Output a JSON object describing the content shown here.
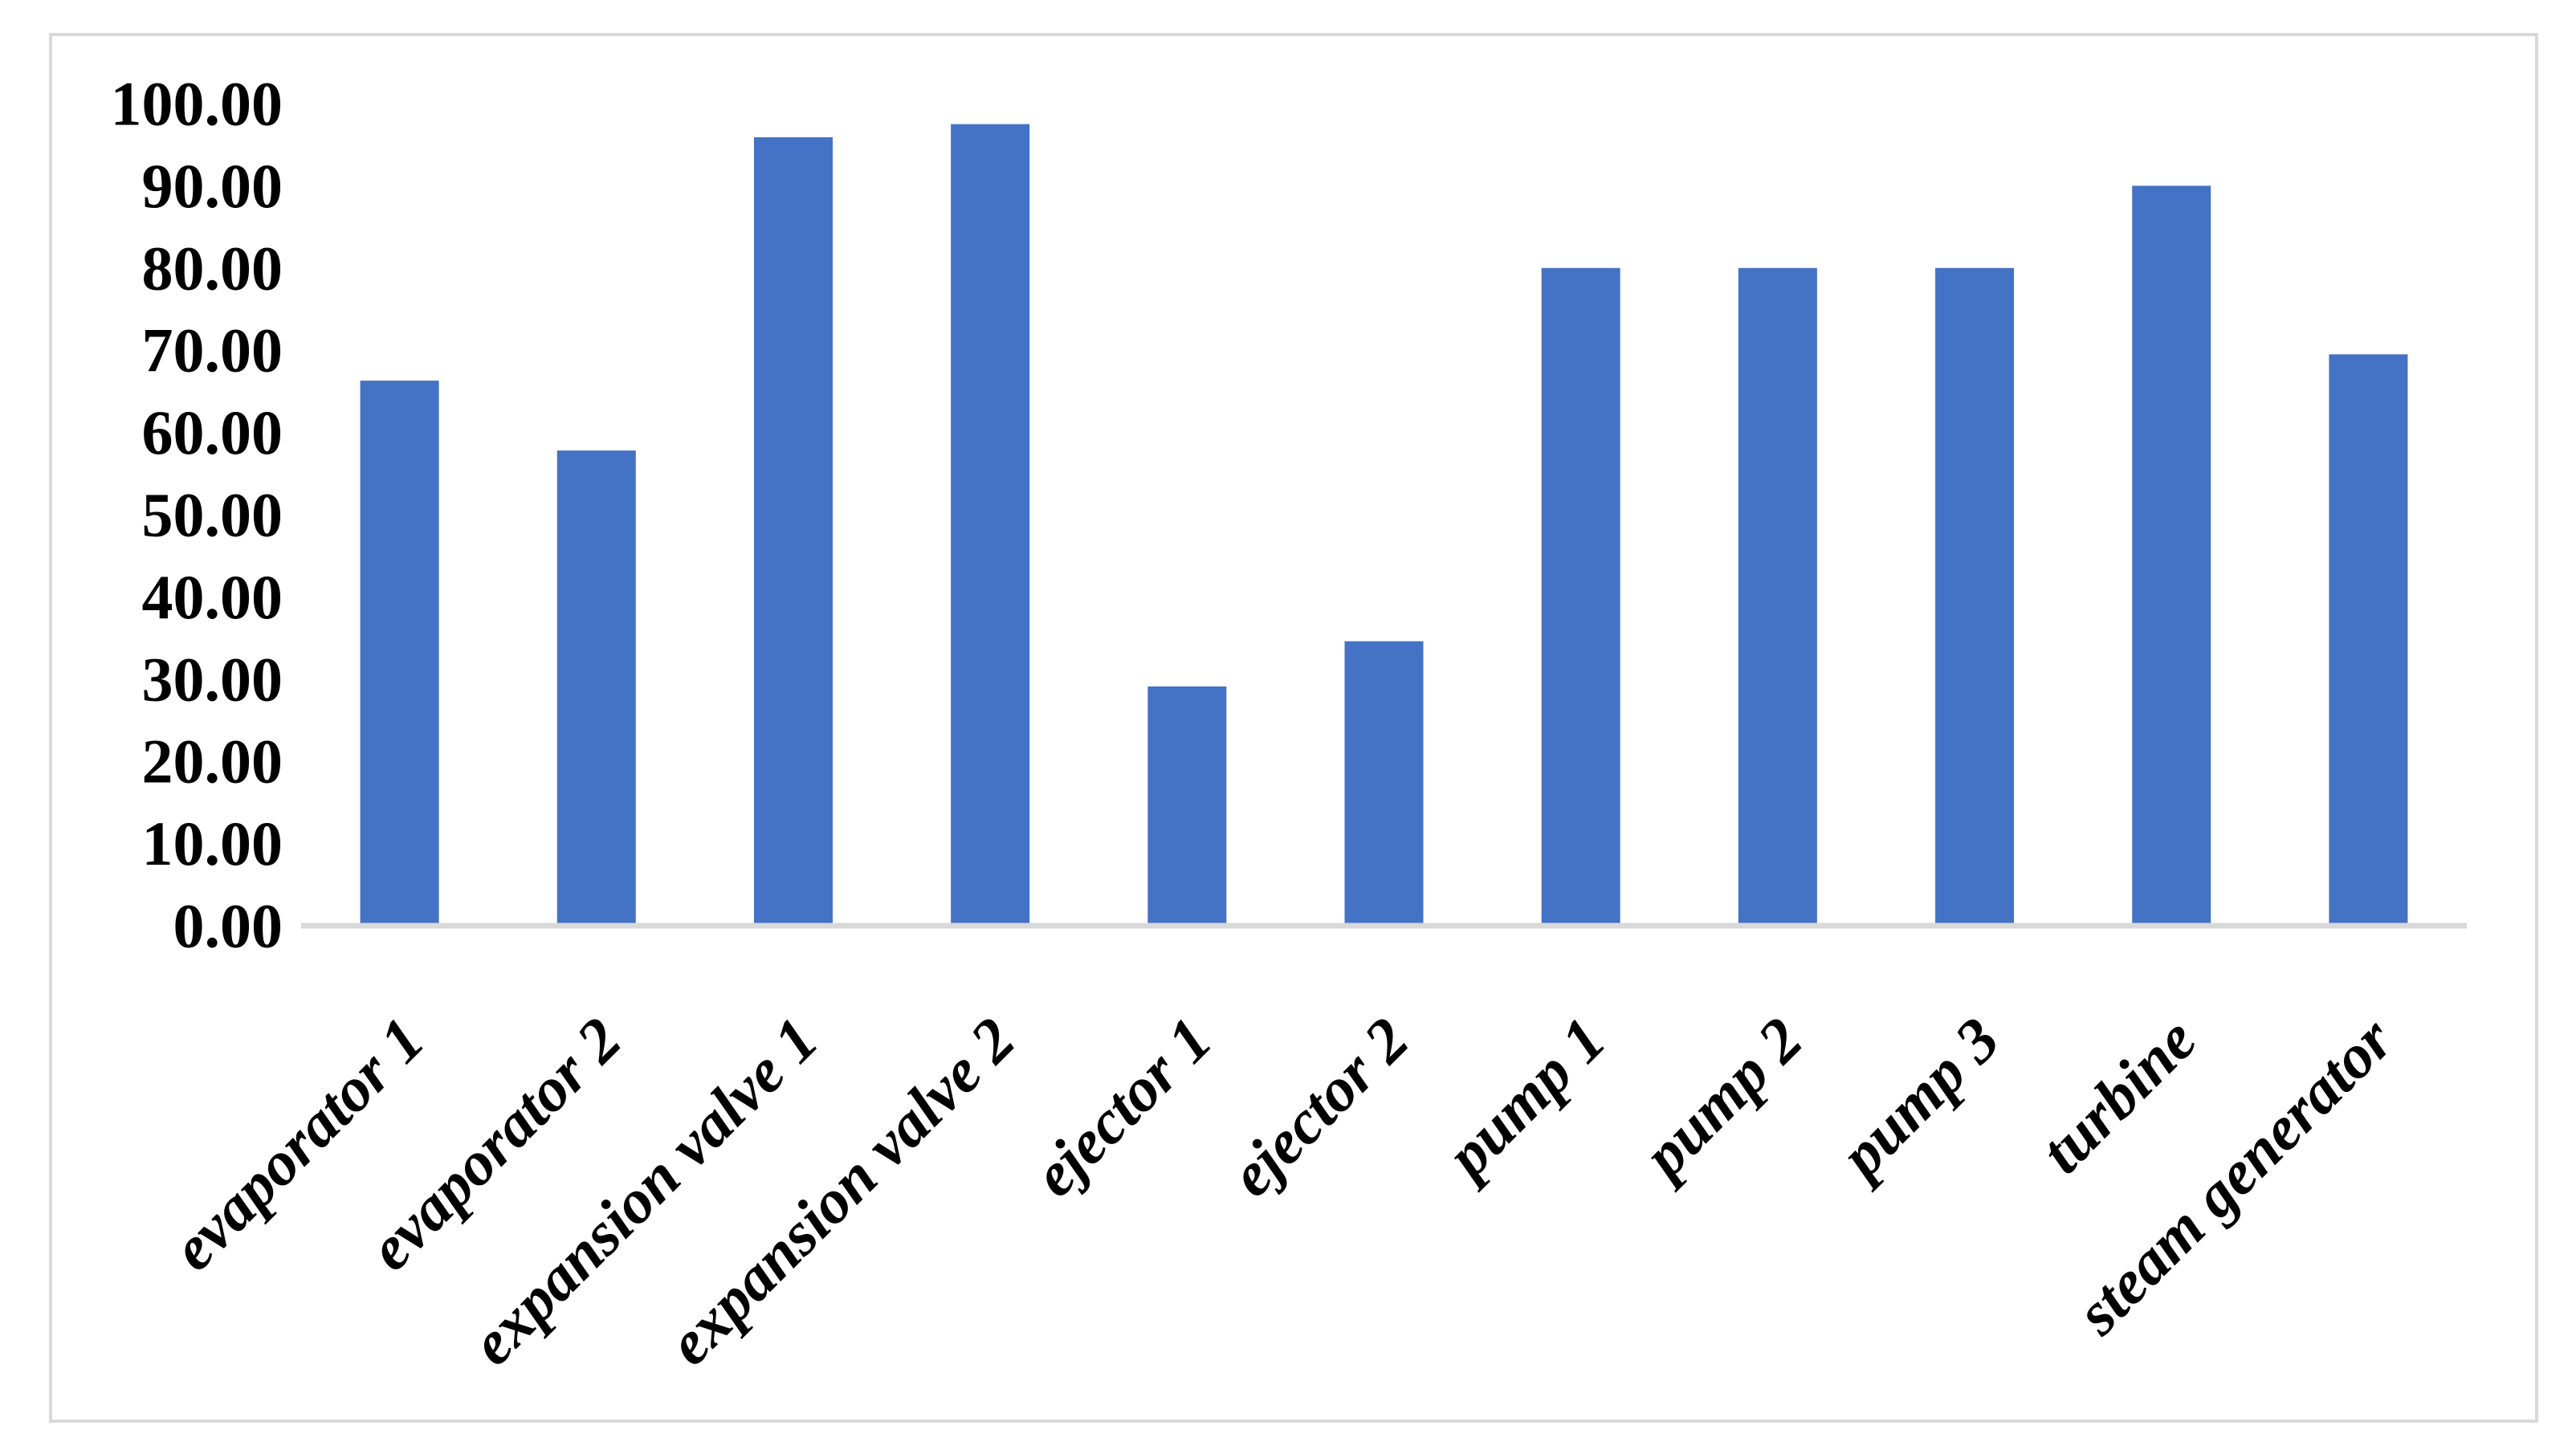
{
  "figure": {
    "background_color": "#FFFFFF",
    "border_color": "#D9D9D9",
    "axis_line_color": "#D9D9D9",
    "text_color": "#000000"
  },
  "chart_data": {
    "type": "bar",
    "title": "",
    "xlabel": "",
    "ylabel": "",
    "categories": [
      "evaporator 1",
      "evaporator 2",
      "expansion valve 1",
      "expansion valve 2",
      "ejector 1",
      "ejector 2",
      "pump 1",
      "pump 2",
      "pump 3",
      "turbine",
      "steam generator"
    ],
    "values": [
      66.3,
      57.8,
      95.9,
      97.5,
      29.1,
      34.6,
      80.0,
      80.0,
      80.0,
      90.0,
      69.5
    ],
    "bar_color": "#4472C4",
    "ylim": [
      0,
      100
    ],
    "y_tick_step": 10,
    "y_tick_labels": [
      "0.00",
      "10.00",
      "20.00",
      "30.00",
      "40.00",
      "50.00",
      "60.00",
      "70.00",
      "80.00",
      "90.00",
      "100.00"
    ],
    "x_tick_rotation_deg": 45,
    "grid": "off",
    "legend": "none"
  }
}
